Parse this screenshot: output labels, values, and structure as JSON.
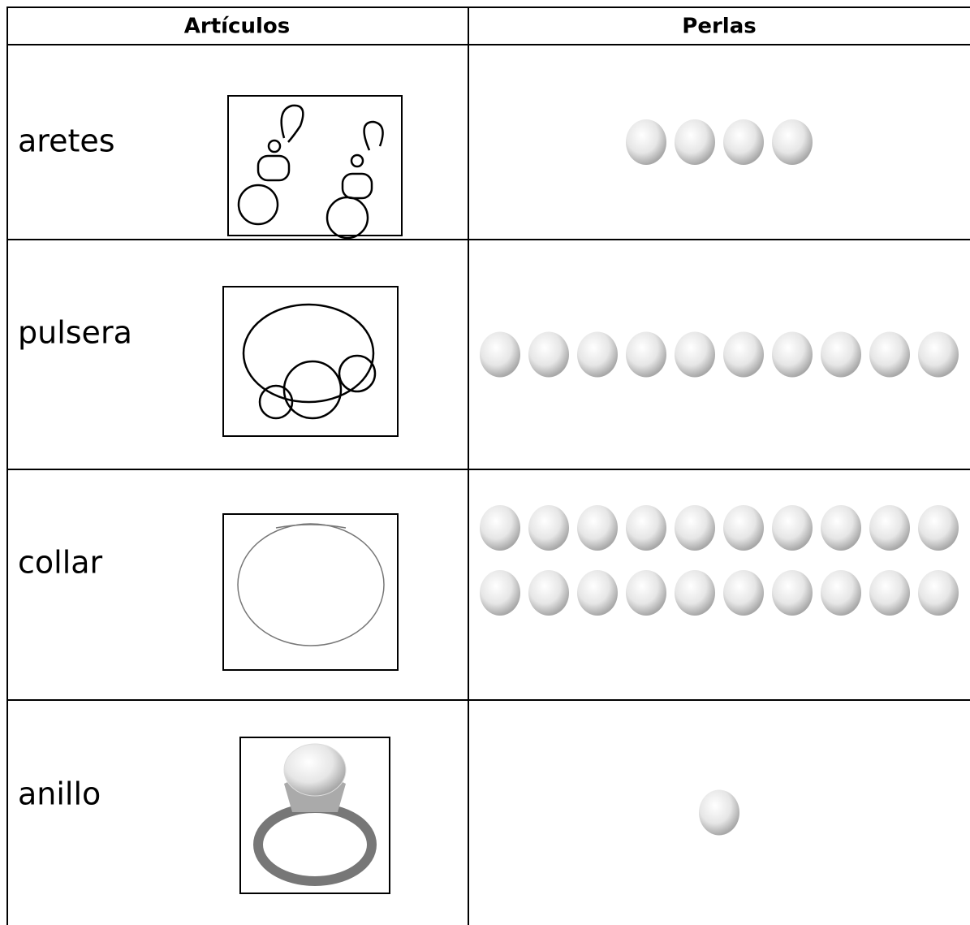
{
  "table": {
    "header": [
      "Artículos",
      "Perlas"
    ],
    "rows": [
      {
        "item": "aretes",
        "pearls": 4
      },
      {
        "item": "pulsera",
        "pearls": 10
      },
      {
        "item": "collar",
        "pearls": 20
      },
      {
        "item": "anillo",
        "pearls": 1
      }
    ]
  }
}
